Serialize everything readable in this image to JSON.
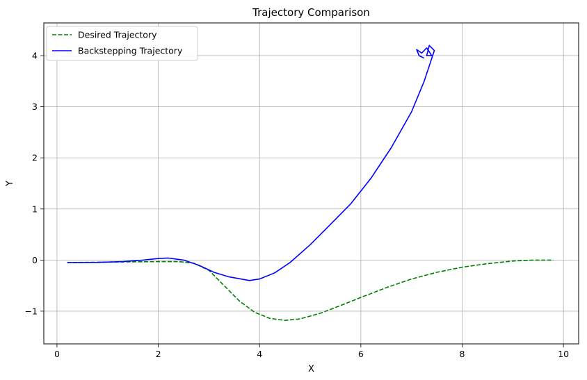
{
  "chart_data": {
    "type": "line",
    "title": "Trajectory Comparison",
    "xlabel": "X",
    "ylabel": "Y",
    "xlim": [
      -0.26,
      10.3
    ],
    "ylim": [
      -1.64,
      4.64
    ],
    "xticks": [
      0,
      2,
      4,
      6,
      8,
      10
    ],
    "yticks": [
      -1,
      0,
      1,
      2,
      3,
      4
    ],
    "xtick_labels": [
      "0",
      "2",
      "4",
      "6",
      "8",
      "10"
    ],
    "ytick_labels": [
      "−1",
      "0",
      "1",
      "2",
      "3",
      "4"
    ],
    "grid": true,
    "legend_position": "top-left",
    "series": [
      {
        "name": "Desired Trajectory",
        "color": "#008000",
        "style": "dashed",
        "points": [
          [
            0.2,
            -0.05
          ],
          [
            1.0,
            -0.04
          ],
          [
            1.5,
            -0.035
          ],
          [
            2.0,
            -0.03
          ],
          [
            2.4,
            -0.03
          ],
          [
            2.7,
            -0.06
          ],
          [
            3.0,
            -0.2
          ],
          [
            3.3,
            -0.5
          ],
          [
            3.6,
            -0.8
          ],
          [
            3.9,
            -1.02
          ],
          [
            4.2,
            -1.14
          ],
          [
            4.5,
            -1.18
          ],
          [
            4.8,
            -1.15
          ],
          [
            5.2,
            -1.04
          ],
          [
            5.6,
            -0.89
          ],
          [
            6.0,
            -0.73
          ],
          [
            6.5,
            -0.54
          ],
          [
            7.0,
            -0.37
          ],
          [
            7.5,
            -0.24
          ],
          [
            8.0,
            -0.14
          ],
          [
            8.5,
            -0.07
          ],
          [
            9.0,
            -0.02
          ],
          [
            9.4,
            0.0
          ],
          [
            9.8,
            0.0
          ]
        ]
      },
      {
        "name": "Backstepping Trajectory",
        "color": "#0000ff",
        "style": "solid",
        "points": [
          [
            0.2,
            -0.05
          ],
          [
            0.8,
            -0.045
          ],
          [
            1.3,
            -0.03
          ],
          [
            1.7,
            0.0
          ],
          [
            2.0,
            0.03
          ],
          [
            2.2,
            0.04
          ],
          [
            2.5,
            0.0
          ],
          [
            2.8,
            -0.1
          ],
          [
            3.1,
            -0.24
          ],
          [
            3.4,
            -0.33
          ],
          [
            3.8,
            -0.4
          ],
          [
            4.0,
            -0.37
          ],
          [
            4.3,
            -0.25
          ],
          [
            4.6,
            -0.05
          ],
          [
            5.0,
            0.3
          ],
          [
            5.4,
            0.7
          ],
          [
            5.8,
            1.1
          ],
          [
            6.2,
            1.6
          ],
          [
            6.6,
            2.2
          ],
          [
            7.0,
            2.9
          ],
          [
            7.25,
            3.5
          ],
          [
            7.45,
            4.1
          ],
          [
            7.35,
            4.2
          ],
          [
            7.3,
            4.0
          ],
          [
            7.4,
            4.0
          ],
          [
            7.3,
            4.15
          ],
          [
            7.2,
            4.05
          ],
          [
            7.1,
            4.12
          ],
          [
            7.15,
            4.0
          ],
          [
            7.25,
            3.95
          ]
        ]
      }
    ]
  }
}
